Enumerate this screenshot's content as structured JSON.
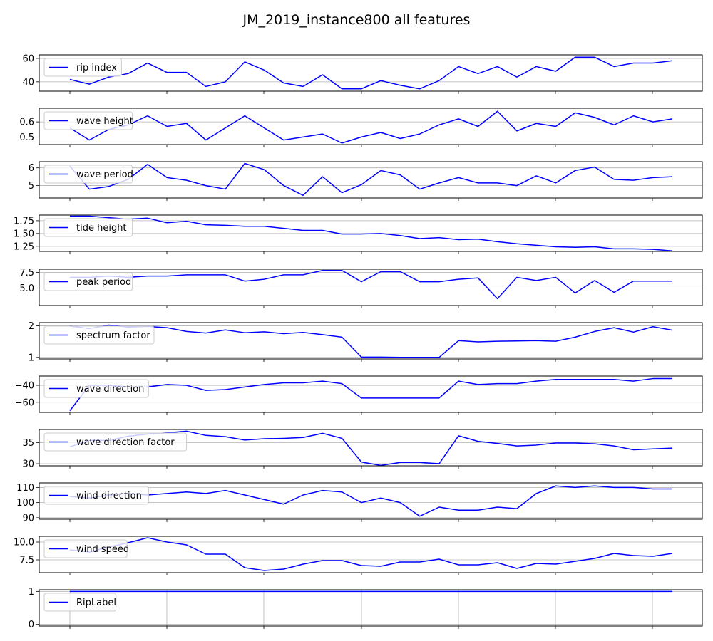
{
  "chart_data": {
    "type": "line",
    "title": "JM_2019_instance800 all features",
    "line_color": "#0000ff",
    "grid": true,
    "legend_placement": "upper-left",
    "shared_x": true,
    "x_tick_labels_shown": false,
    "x": [
      0,
      1,
      2,
      3,
      4,
      5,
      6,
      7,
      8,
      9,
      10,
      11,
      12,
      13,
      14,
      15,
      16,
      17,
      18,
      19,
      20,
      21,
      22,
      23,
      24,
      25,
      26,
      27,
      28,
      29,
      30,
      31
    ],
    "panels": [
      {
        "name": "rip index",
        "ylim": [
          32,
          63
        ],
        "yticks": [
          40,
          60
        ],
        "ytick_labels": [
          "40",
          "60"
        ],
        "values": [
          42,
          38,
          44,
          47,
          56,
          48,
          48,
          36,
          40,
          57,
          50,
          39,
          36,
          46,
          34,
          34,
          41,
          37,
          34,
          41,
          53,
          47,
          53,
          44,
          53,
          49,
          61,
          61,
          53,
          56,
          56,
          58
        ]
      },
      {
        "name": "wave height",
        "ylim": [
          0.45,
          0.69
        ],
        "yticks": [
          0.5,
          0.6
        ],
        "ytick_labels": [
          "0.5",
          "0.6"
        ],
        "values": [
          0.56,
          0.48,
          0.55,
          0.58,
          0.64,
          0.57,
          0.59,
          0.48,
          0.56,
          0.64,
          0.56,
          0.48,
          0.5,
          0.52,
          0.46,
          0.5,
          0.53,
          0.49,
          0.52,
          0.58,
          0.62,
          0.57,
          0.67,
          0.54,
          0.59,
          0.57,
          0.66,
          0.63,
          0.58,
          0.64,
          0.6,
          0.62
        ]
      },
      {
        "name": "wave period",
        "ylim": [
          4.3,
          6.35
        ],
        "yticks": [
          5,
          6
        ],
        "ytick_labels": [
          "5",
          "6"
        ],
        "values": [
          6.1,
          4.8,
          4.95,
          5.35,
          6.2,
          5.45,
          5.3,
          5.0,
          4.8,
          6.25,
          5.9,
          5.0,
          4.45,
          5.5,
          4.6,
          5.05,
          5.85,
          5.6,
          4.8,
          5.15,
          5.45,
          5.15,
          5.15,
          5.0,
          5.55,
          5.15,
          5.85,
          6.05,
          5.35,
          5.3,
          5.45,
          5.5
        ]
      },
      {
        "name": "tide height",
        "ylim": [
          1.15,
          1.86
        ],
        "yticks": [
          1.25,
          1.5,
          1.75
        ],
        "ytick_labels": [
          "1.25",
          "1.50",
          "1.75"
        ],
        "values": [
          1.84,
          1.84,
          1.81,
          1.78,
          1.8,
          1.71,
          1.74,
          1.67,
          1.66,
          1.64,
          1.64,
          1.6,
          1.56,
          1.56,
          1.49,
          1.49,
          1.5,
          1.46,
          1.4,
          1.42,
          1.38,
          1.39,
          1.34,
          1.3,
          1.27,
          1.24,
          1.23,
          1.24,
          1.2,
          1.2,
          1.19,
          1.16
        ]
      },
      {
        "name": "peak period",
        "ylim": [
          2.2,
          8.0
        ],
        "yticks": [
          5.0,
          7.5
        ],
        "ytick_labels": [
          "5.0",
          "7.5"
        ],
        "values": [
          6.7,
          6.7,
          6.9,
          6.7,
          6.9,
          6.9,
          7.1,
          7.1,
          7.1,
          6.1,
          6.4,
          7.1,
          7.1,
          7.8,
          7.8,
          6.0,
          7.6,
          7.6,
          6.0,
          6.0,
          6.4,
          6.6,
          3.3,
          6.7,
          6.2,
          6.7,
          4.2,
          6.2,
          4.3,
          6.1,
          6.1,
          6.1
        ]
      },
      {
        "name": "spectrum factor",
        "ylim": [
          0.95,
          2.1
        ],
        "yticks": [
          1,
          2
        ],
        "ytick_labels": [
          "1",
          "2"
        ],
        "values": [
          1.99,
          1.91,
          2.02,
          1.96,
          1.98,
          1.94,
          1.82,
          1.77,
          1.87,
          1.78,
          1.81,
          1.75,
          1.79,
          1.72,
          1.64,
          1.01,
          1.01,
          1.0,
          1.0,
          1.0,
          1.53,
          1.49,
          1.51,
          1.52,
          1.53,
          1.51,
          1.64,
          1.82,
          1.94,
          1.8,
          1.97,
          1.86
        ]
      },
      {
        "name": "wave direction",
        "ylim": [
          -72,
          -29
        ],
        "yticks": [
          -60,
          -40
        ],
        "ytick_labels": [
          "−60",
          "−40"
        ],
        "values": [
          -70,
          -40,
          -40,
          -42,
          -42,
          -39,
          -40,
          -46,
          -45,
          -42,
          -39,
          -37,
          -37,
          -35,
          -38,
          -55,
          -55,
          -55,
          -55,
          -55,
          -35,
          -39,
          -38,
          -38,
          -35,
          -33,
          -33,
          -33,
          -33,
          -35,
          -32,
          -32
        ]
      },
      {
        "name": "wave direction factor",
        "ylim": [
          29.5,
          38.1
        ],
        "yticks": [
          30,
          35
        ],
        "ytick_labels": [
          "30",
          "35"
        ],
        "values": [
          34.0,
          35.5,
          35.5,
          36.5,
          37.0,
          37.3,
          37.7,
          36.7,
          36.4,
          35.6,
          35.9,
          36.0,
          36.2,
          37.2,
          36.0,
          30.4,
          29.6,
          30.3,
          30.3,
          30.0,
          36.6,
          35.3,
          34.8,
          34.2,
          34.4,
          34.9,
          34.9,
          34.7,
          34.2,
          33.3,
          33.5,
          33.7
        ]
      },
      {
        "name": "wind direction",
        "ylim": [
          89,
          113
        ],
        "yticks": [
          90,
          100,
          110
        ],
        "ytick_labels": [
          "90",
          "100",
          "110"
        ],
        "values": [
          104,
          103,
          105,
          106,
          105,
          106,
          107,
          106,
          108,
          105,
          102,
          99,
          105,
          108,
          107,
          100,
          103,
          100,
          91,
          97,
          95,
          95,
          97,
          96,
          106,
          111,
          110,
          111,
          110,
          110,
          109,
          109
        ]
      },
      {
        "name": "wind speed",
        "ylim": [
          5.7,
          10.8
        ],
        "yticks": [
          7.5,
          10.0
        ],
        "ytick_labels": [
          "7.5",
          "10.0"
        ],
        "values": [
          8.9,
          8.6,
          9.3,
          9.9,
          10.6,
          10.0,
          9.6,
          8.3,
          8.3,
          6.4,
          6.0,
          6.2,
          6.9,
          7.4,
          7.4,
          6.7,
          6.6,
          7.2,
          7.2,
          7.6,
          6.8,
          6.8,
          7.1,
          6.3,
          7.0,
          6.9,
          7.3,
          7.7,
          8.4,
          8.1,
          8.0,
          8.4
        ]
      },
      {
        "name": "RipLabel",
        "ylim": [
          -0.05,
          1.05
        ],
        "yticks": [
          0,
          1
        ],
        "ytick_labels": [
          "0",
          "1"
        ],
        "values": [
          1,
          1,
          1,
          1,
          1,
          1,
          1,
          1,
          1,
          1,
          1,
          1,
          1,
          1,
          1,
          1,
          1,
          1,
          1,
          1,
          1,
          1,
          1,
          1,
          1,
          1,
          1,
          1,
          1,
          1,
          1,
          1
        ],
        "x_gridlines": true
      }
    ]
  }
}
